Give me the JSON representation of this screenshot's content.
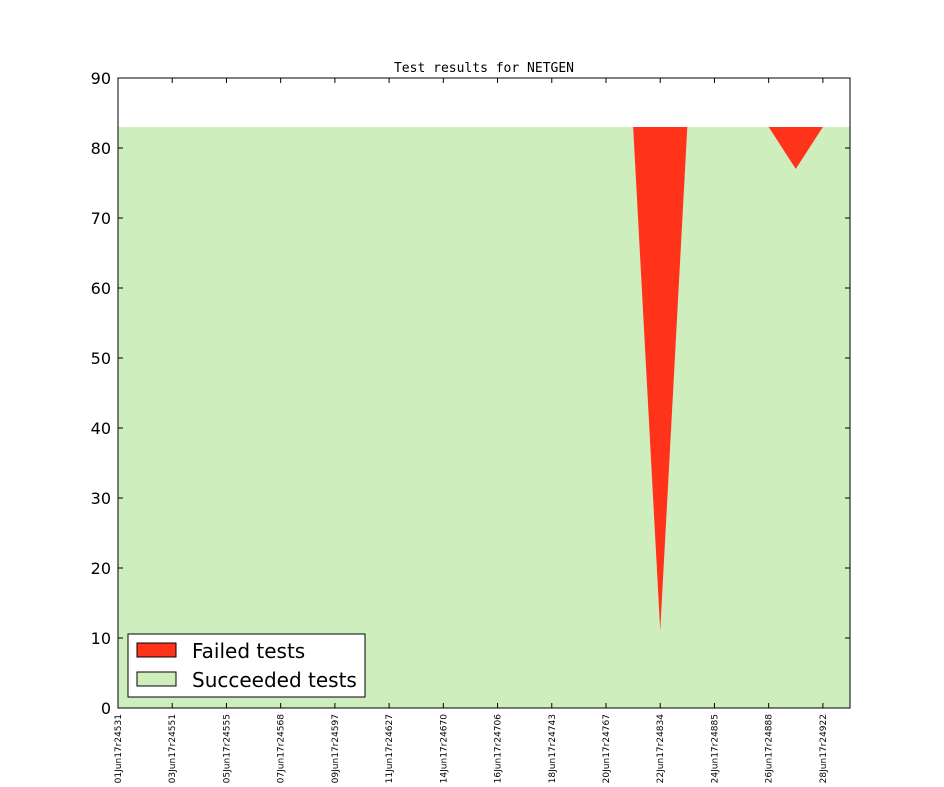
{
  "chart_data": {
    "type": "area",
    "title": "Test results for NETGEN",
    "xlabel": "",
    "ylabel": "",
    "ylim": [
      0,
      90
    ],
    "yticks": [
      0,
      10,
      20,
      30,
      40,
      50,
      60,
      70,
      80,
      90
    ],
    "x_tick_labels": [
      "01Jun17r24531",
      "03Jun17r24551",
      "05Jun17r24555",
      "07Jun17r24568",
      "09Jun17r24597",
      "11Jun17r24627",
      "14Jun17r24670",
      "16Jun17r24706",
      "18Jun17r24743",
      "20Jun17r24767",
      "22Jun17r24834",
      "24Jun17r24885",
      "26Jun17r24888",
      "28Jun17r24922"
    ],
    "x": [
      0,
      1,
      2,
      3,
      4,
      5,
      6,
      7,
      8,
      9,
      10,
      11,
      12,
      13,
      14,
      15,
      16,
      17,
      18,
      19,
      20,
      21,
      22,
      23,
      24,
      25,
      26,
      27
    ],
    "series": [
      {
        "name": "Failed tests",
        "color": "#ff3319",
        "values": [
          0,
          0,
          0,
          0,
          0,
          0,
          0,
          0,
          0,
          0,
          0,
          0,
          0,
          0,
          0,
          0,
          0,
          0,
          0,
          0,
          72,
          0,
          0,
          0,
          0,
          6,
          0,
          0
        ]
      },
      {
        "name": "Succeeded tests",
        "color": "#cfeebe",
        "values": [
          83,
          83,
          83,
          83,
          83,
          83,
          83,
          83,
          83,
          83,
          83,
          83,
          83,
          83,
          83,
          83,
          83,
          83,
          83,
          83,
          11,
          83,
          83,
          83,
          83,
          77,
          83,
          83
        ]
      }
    ],
    "grid": false,
    "legend_position": "lower-left"
  }
}
